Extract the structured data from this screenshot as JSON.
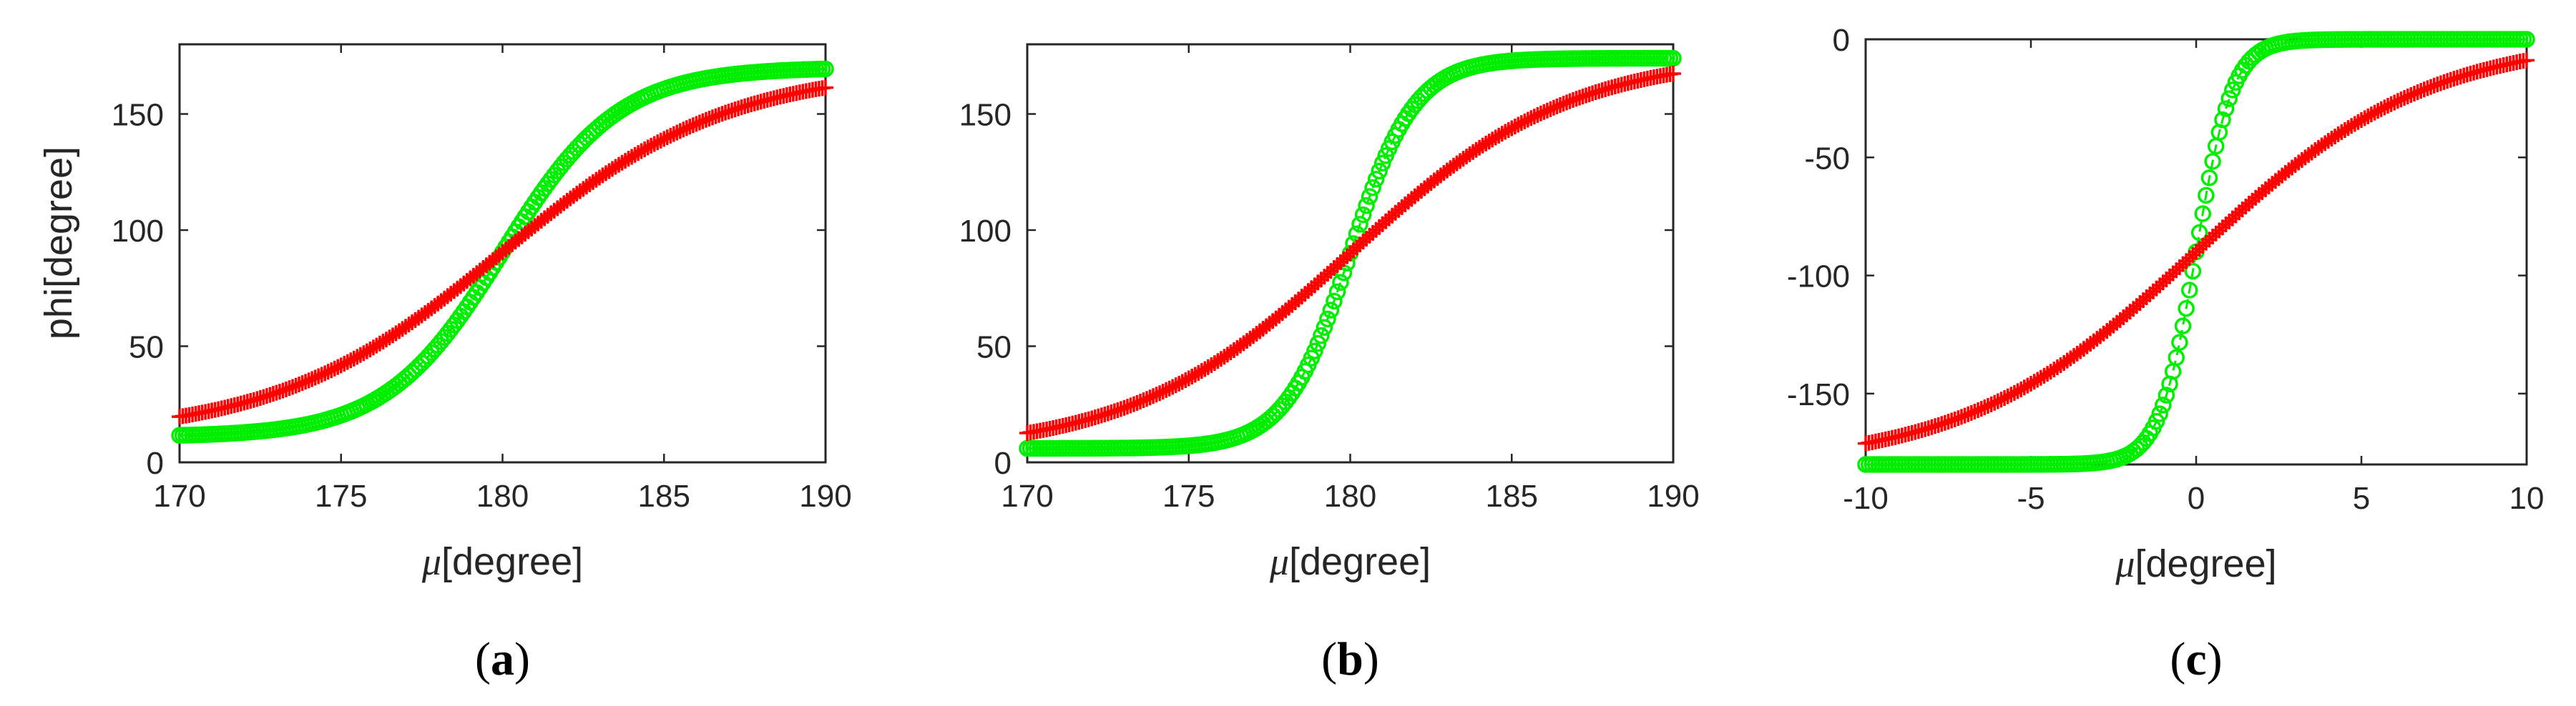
{
  "figure": {
    "ylabel_shared": "phi[degree]"
  },
  "chart_data": [
    {
      "panel": "(a)",
      "caption_letter": "a",
      "type": "scatter",
      "xlabel_symbol": "μ",
      "xlabel_unit": "[degree]",
      "ylabel": "phi[degree]",
      "xlim": [
        170,
        190
      ],
      "ylim": [
        0,
        180
      ],
      "xticks": [
        170,
        175,
        180,
        185,
        190
      ],
      "yticks": [
        0,
        50,
        100,
        150
      ],
      "xtick_labels": [
        "170",
        "175",
        "180",
        "185",
        "190"
      ],
      "ytick_labels": [
        "0",
        "50",
        "100",
        "150"
      ],
      "grid": false,
      "series": [
        {
          "name": "green-circles",
          "marker": "o",
          "color": "#00ee00",
          "line": "dash",
          "model": "sigmoid",
          "center": 180,
          "lo": 11,
          "hi": 170,
          "scale": 1.8,
          "n": 201
        },
        {
          "name": "red-plus",
          "marker": "+",
          "color": "#ff0000",
          "line": "solid",
          "model": "sigmoid",
          "center": 180,
          "lo": 11,
          "hi": 170,
          "scale": 3.5,
          "n": 201
        }
      ]
    },
    {
      "panel": "(b)",
      "caption_letter": "b",
      "type": "scatter",
      "xlabel_symbol": "μ",
      "xlabel_unit": "[degree]",
      "ylabel": "",
      "xlim": [
        170,
        190
      ],
      "ylim": [
        0,
        180
      ],
      "xticks": [
        170,
        175,
        180,
        185,
        190
      ],
      "yticks": [
        0,
        50,
        100,
        150
      ],
      "xtick_labels": [
        "170",
        "175",
        "180",
        "185",
        "190"
      ],
      "ytick_labels": [
        "0",
        "50",
        "100",
        "150"
      ],
      "grid": false,
      "series": [
        {
          "name": "green-circles",
          "marker": "o",
          "color": "#00ee00",
          "line": "dash",
          "model": "sigmoid",
          "center": 180,
          "lo": 6,
          "hi": 174,
          "scale": 1.0,
          "n": 201
        },
        {
          "name": "red-plus",
          "marker": "+",
          "color": "#ff0000",
          "line": "solid",
          "model": "sigmoid",
          "center": 180,
          "lo": 4,
          "hi": 176,
          "scale": 3.4,
          "n": 201
        }
      ]
    },
    {
      "panel": "(c)",
      "caption_letter": "c",
      "type": "scatter",
      "xlabel_symbol": "μ",
      "xlabel_unit": "[degree]",
      "ylabel": "",
      "xlim": [
        -10,
        10
      ],
      "ylim": [
        -180,
        0
      ],
      "xticks": [
        -10,
        -5,
        0,
        5,
        10
      ],
      "yticks": [
        -150,
        -100,
        -50,
        0
      ],
      "xtick_labels": [
        "-10",
        "-5",
        "0",
        "5",
        "10"
      ],
      "ytick_labels": [
        "-150",
        "-100",
        "-50",
        "0"
      ],
      "grid": false,
      "series": [
        {
          "name": "green-circles",
          "marker": "o",
          "color": "#00ee00",
          "line": "dash",
          "model": "sigmoid",
          "center": 0,
          "lo": -180,
          "hi": 0,
          "scale": 0.55,
          "n": 201
        },
        {
          "name": "red-plus",
          "marker": "+",
          "color": "#ff0000",
          "line": "solid",
          "model": "sigmoid",
          "center": 0,
          "lo": -181,
          "hi": 1,
          "scale": 3.5,
          "n": 201
        }
      ]
    }
  ]
}
